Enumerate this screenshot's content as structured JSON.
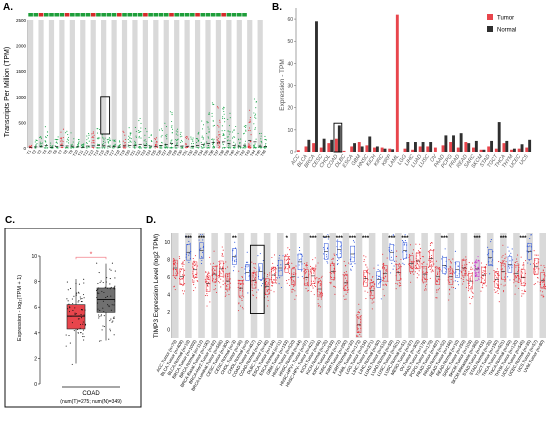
{
  "panels": {
    "A": {
      "label": "A."
    },
    "B": {
      "label": "B."
    },
    "C": {
      "label": "C."
    },
    "D": {
      "label": "D."
    }
  },
  "colors": {
    "tumor": "#e8454c",
    "normal": "#2f2f2f",
    "tumor_dots": "#e8303a",
    "normal_dots": "#2a52d8",
    "metastasis": "#cc33cc",
    "stripe": "#d9d9d9",
    "green_text": "#1e9e3a",
    "red_text": "#d42a2a",
    "sig_box_c": "#f2808a"
  },
  "chart_data": [
    {
      "id": "A",
      "type": "scatter",
      "ylabel": "Transcripts Per Million (TPM)",
      "ylim": [
        0,
        2500
      ],
      "yticks": [
        0,
        500,
        1000,
        1500,
        2000,
        2500
      ],
      "n_groups": 46,
      "highlight_group": 14,
      "group_height": [
        60,
        180,
        260,
        420,
        130,
        220,
        380,
        330,
        300,
        180,
        90,
        320,
        350,
        420,
        360,
        280,
        220,
        160,
        330,
        420,
        420,
        600,
        380,
        320,
        240,
        420,
        560,
        760,
        420,
        320,
        280,
        240,
        380,
        600,
        760,
        900,
        840,
        1000,
        760,
        420,
        300,
        460,
        1200,
        1000,
        300,
        260
      ]
    },
    {
      "id": "B",
      "type": "bar",
      "ylabel": "Expression - TPM",
      "ylim": [
        0,
        65
      ],
      "yticks": [
        0,
        10,
        20,
        30,
        40,
        50,
        60
      ],
      "legend": [
        "Tumor",
        "Normal"
      ],
      "legend_position": "top-right",
      "categories": [
        "ACC",
        "BLCA",
        "BRCA",
        "CESC",
        "CHOL",
        "COAD",
        "DLBC",
        "ESCA",
        "GBM",
        "HNSC",
        "KICH",
        "KIRC",
        "KIRP",
        "LAML",
        "LGG",
        "LIHC",
        "LUAD",
        "LUSC",
        "OV",
        "PAAD",
        "PCPG",
        "PRAD",
        "READ",
        "SARC",
        "SKCM",
        "STAD",
        "TGCT",
        "THCA",
        "THYM",
        "UCEC",
        "UCS"
      ],
      "highlight_category": "COAD",
      "series": [
        {
          "name": "Tumor",
          "values": [
            0.8,
            2.5,
            4.0,
            2.0,
            4.0,
            6.0,
            0.5,
            2.5,
            4.5,
            3.0,
            2.0,
            2.0,
            1.5,
            62.0,
            1.5,
            1.0,
            2.5,
            2.5,
            2.0,
            3.0,
            4.5,
            2.0,
            4.5,
            2.0,
            1.0,
            2.5,
            1.5,
            4.0,
            1.0,
            1.5,
            2.0
          ]
        },
        {
          "name": "Normal",
          "values": [
            0,
            5.5,
            59.0,
            6.0,
            5.5,
            12.0,
            0,
            4.0,
            2.5,
            7.0,
            2.5,
            1.5,
            1.2,
            0,
            4.5,
            4.5,
            4.5,
            4.5,
            0,
            7.5,
            7.5,
            8.5,
            4.0,
            5.0,
            1.0,
            5.0,
            13.5,
            5.0,
            1.5,
            3.5,
            5.5
          ]
        }
      ]
    },
    {
      "id": "C",
      "type": "box",
      "ylabel": "Expression - log₂(TPM + 1)",
      "ylim": [
        0,
        10
      ],
      "yticks": [
        0,
        2,
        4,
        6,
        8,
        10
      ],
      "xlabel": "COAD",
      "xsub": "(num(T)=275; num(N)=349)",
      "significance": "*",
      "boxes": [
        {
          "name": "Tumor",
          "q1": 4.3,
          "median": 5.3,
          "q3": 6.2,
          "low": 1.6,
          "high": 8.2
        },
        {
          "name": "Normal",
          "q1": 5.6,
          "median": 6.6,
          "q3": 7.5,
          "low": 3.4,
          "high": 9.4
        }
      ]
    },
    {
      "id": "D",
      "type": "box",
      "ylabel": "TIMP3 Expression Level (log2 TPM)",
      "ylim": [
        -1,
        11
      ],
      "yticks": [
        0,
        2,
        4,
        6,
        8,
        10
      ],
      "categories": [
        "ACC.Tumor (n=79)",
        "BLCA.Tumor (n=408)",
        "BLCA.Normal (n=19)",
        "BRCA.Tumor (n=1093)",
        "BRCA.Normal (n=112)",
        "BRCA-Basal.Tumor (n=190)",
        "BRCA-Her2.Tumor (n=82)",
        "BRCA-Luminal.Tumor (n=566)",
        "CESC.Tumor (n=304)",
        "CESC.Normal (n=3)",
        "CHOL.Tumor (n=36)",
        "CHOL.Normal (n=9)",
        "COAD.Tumor (n=457)",
        "COAD.Normal (n=41)",
        "DLBC.Tumor (n=48)",
        "ESCA.Tumor (n=184)",
        "ESCA.Normal (n=11)",
        "GBM.Tumor (n=153)",
        "HNSC.Tumor (n=520)",
        "HNSC.Normal (n=44)",
        "HNSC-HPV+.Tumor (n=97)",
        "HNSC-HPV-.Tumor (n=421)",
        "KICH.Tumor (n=66)",
        "KICH.Normal (n=25)",
        "KIRC.Tumor (n=533)",
        "KIRC.Normal (n=72)",
        "KIRP.Tumor (n=290)",
        "KIRP.Normal (n=32)",
        "LAML.Tumor (n=173)",
        "LGG.Tumor (n=516)",
        "LIHC.Tumor (n=371)",
        "LIHC.Normal (n=50)",
        "LUAD.Tumor (n=515)",
        "LUAD.Normal (n=59)",
        "LUSC.Tumor (n=501)",
        "LUSC.Normal (n=51)",
        "MESO.Tumor (n=87)",
        "OV.Tumor (n=303)",
        "PAAD.Tumor (n=178)",
        "PCPG.Tumor (n=179)",
        "PRAD.Tumor (n=497)",
        "PRAD.Normal (n=52)",
        "READ.Tumor (n=166)",
        "READ.Normal (n=10)",
        "SARC.Tumor (n=259)",
        "SKCM.Tumor (n=103)",
        "SKCM.Metastasis (n=368)",
        "STAD.Tumor (n=415)",
        "STAD.Normal (n=35)",
        "TGCT.Tumor (n=150)",
        "THCA.Tumor (n=501)",
        "THCA.Normal (n=59)",
        "THYM.Tumor (n=120)",
        "UCEC.Tumor (n=545)",
        "UCEC.Normal (n=35)",
        "UCS.Tumor (n=57)",
        "UVM.Tumor (n=80)"
      ],
      "group_type": [
        "T",
        "T",
        "N",
        "T",
        "N",
        "T",
        "T",
        "T",
        "T",
        "N",
        "T",
        "N",
        "T",
        "N",
        "T",
        "T",
        "N",
        "T",
        "T",
        "N",
        "T",
        "T",
        "T",
        "N",
        "T",
        "N",
        "T",
        "N",
        "T",
        "T",
        "T",
        "N",
        "T",
        "N",
        "T",
        "N",
        "T",
        "T",
        "T",
        "T",
        "T",
        "N",
        "T",
        "N",
        "T",
        "T",
        "M",
        "T",
        "N",
        "T",
        "T",
        "N",
        "T",
        "T",
        "N",
        "T",
        "T"
      ],
      "medians": [
        7.0,
        6.0,
        8.8,
        6.8,
        9.0,
        5.2,
        6.3,
        6.9,
        5.5,
        8.3,
        4.7,
        6.5,
        5.6,
        6.6,
        4.9,
        6.2,
        7.0,
        7.4,
        6.0,
        7.7,
        5.9,
        6.1,
        4.6,
        8.9,
        6.6,
        9.1,
        5.3,
        8.6,
        0.5,
        5.8,
        4.4,
        5.7,
        6.4,
        8.8,
        6.5,
        9.0,
        7.5,
        7.8,
        6.3,
        8.1,
        6.0,
        7.3,
        6.0,
        6.8,
        7.0,
        5.5,
        6.9,
        6.2,
        8.2,
        5.7,
        6.6,
        7.4,
        6.4,
        5.9,
        8.9,
        7.2,
        5.6
      ],
      "significance": [
        "",
        "",
        "***",
        "",
        "***",
        "",
        "",
        "",
        "",
        "**",
        "",
        "",
        "",
        "",
        "",
        "",
        "",
        "*",
        "",
        "",
        "",
        "***",
        "",
        "***",
        "",
        "***",
        "",
        "***",
        "",
        "***",
        "",
        "",
        "",
        "***",
        "",
        "***",
        "",
        "",
        "",
        "",
        "",
        "***",
        "",
        "",
        "",
        "",
        "***",
        "",
        "",
        "",
        "***",
        "",
        "",
        "***",
        "",
        "",
        ""
      ],
      "highlight_range": [
        12,
        13
      ]
    }
  ]
}
